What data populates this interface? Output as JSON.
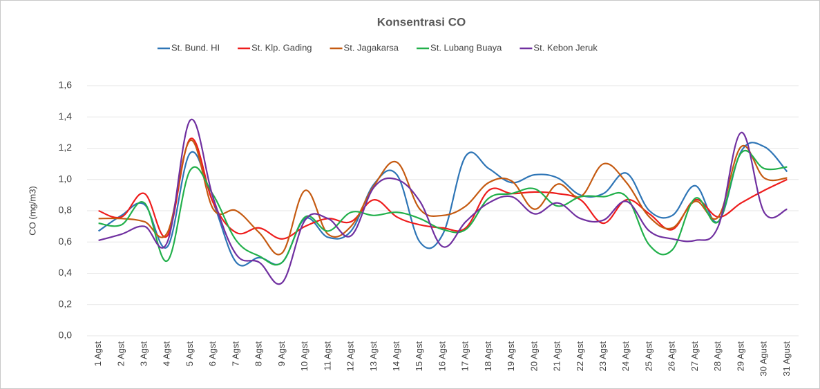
{
  "chart_data": {
    "type": "line",
    "title": "Konsentrasi CO",
    "y_label": "CO (mg/m3)",
    "categories": [
      "1 Agst",
      "2 Agst",
      "3 Agst",
      "4 Agst",
      "5 Agst",
      "6 Agst",
      "7 Agst",
      "8 Agst",
      "9 Agst",
      "10 Agst",
      "11 Agst",
      "12 Agst",
      "13 Agst",
      "14 Agst",
      "15 Agst",
      "16 Agst",
      "17 Agst",
      "18 Agst",
      "19 Agst",
      "20 Agst",
      "21 Agst",
      "22 Agst",
      "23 Agst",
      "24 Agst",
      "25 Agst",
      "26 Agst",
      "27 Agst",
      "28 Agst",
      "29 Agst",
      "30 Agust",
      "31 Agust"
    ],
    "series": [
      {
        "name": "St. Bund. HI",
        "color": "#2e75b6",
        "values": [
          0.67,
          0.77,
          0.84,
          0.57,
          1.17,
          0.85,
          0.47,
          0.5,
          0.47,
          0.75,
          0.63,
          0.67,
          0.97,
          1.03,
          0.6,
          0.65,
          1.15,
          1.07,
          0.98,
          1.03,
          1.01,
          0.9,
          0.91,
          1.04,
          0.8,
          0.77,
          0.96,
          0.73,
          1.18,
          1.21,
          1.05
        ]
      },
      {
        "name": "St. Klp. Gading",
        "color": "#ee1c1c",
        "values": [
          0.8,
          0.76,
          0.91,
          0.64,
          1.26,
          0.85,
          0.66,
          0.69,
          0.62,
          0.7,
          0.75,
          0.73,
          0.87,
          0.76,
          0.71,
          0.69,
          0.69,
          0.93,
          0.91,
          0.92,
          0.91,
          0.87,
          0.72,
          0.87,
          0.78,
          0.68,
          0.87,
          0.76,
          0.85,
          0.93,
          1.0
        ]
      },
      {
        "name": "St. Jagakarsa",
        "color": "#c55a11",
        "values": [
          0.75,
          0.75,
          0.73,
          0.66,
          1.25,
          0.81,
          0.8,
          0.66,
          0.53,
          0.93,
          0.65,
          0.7,
          0.96,
          1.11,
          0.81,
          0.77,
          0.83,
          0.98,
          0.99,
          0.81,
          0.97,
          0.89,
          1.1,
          0.98,
          0.76,
          0.69,
          0.86,
          0.76,
          1.21,
          1.01,
          1.01
        ]
      },
      {
        "name": "St. Lubang Buaya",
        "color": "#22b04b",
        "values": [
          0.72,
          0.71,
          0.85,
          0.48,
          1.06,
          0.9,
          0.61,
          0.51,
          0.47,
          0.76,
          0.67,
          0.79,
          0.77,
          0.79,
          0.75,
          0.68,
          0.68,
          0.88,
          0.91,
          0.94,
          0.83,
          0.89,
          0.89,
          0.89,
          0.58,
          0.55,
          0.88,
          0.73,
          1.17,
          1.07,
          1.08
        ]
      },
      {
        "name": "St. Kebon Jeruk",
        "color": "#7030a0",
        "values": [
          0.61,
          0.65,
          0.7,
          0.6,
          1.38,
          0.88,
          0.52,
          0.47,
          0.34,
          0.74,
          0.75,
          0.64,
          0.95,
          1.0,
          0.86,
          0.57,
          0.73,
          0.85,
          0.89,
          0.78,
          0.85,
          0.75,
          0.74,
          0.86,
          0.67,
          0.62,
          0.61,
          0.7,
          1.3,
          0.79,
          0.81
        ]
      }
    ],
    "ylim": [
      0,
      1.6
    ],
    "yticks": [
      {
        "value": 0,
        "label": "0,0"
      },
      {
        "value": 0.2,
        "label": "0,2"
      },
      {
        "value": 0.4,
        "label": "0,4"
      },
      {
        "value": 0.6,
        "label": "0,6"
      },
      {
        "value": 0.8,
        "label": "0,8"
      },
      {
        "value": 1.0,
        "label": "1,0"
      },
      {
        "value": 1.2,
        "label": "1,2"
      },
      {
        "value": 1.4,
        "label": "1,4"
      },
      {
        "value": 1.6,
        "label": "1,6"
      }
    ],
    "grid": true
  }
}
